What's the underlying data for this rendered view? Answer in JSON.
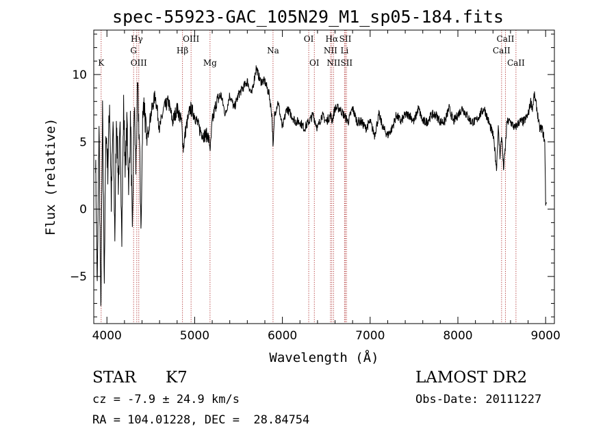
{
  "header": {
    "title": "spec-55923-GAC_105N29_M1_sp05-184.fits"
  },
  "info": {
    "class_label": "STAR",
    "subclass_label": "K7",
    "survey": "LAMOST DR2",
    "cz": "cz = -7.9 ± 24.9 km/s",
    "obs_date": "Obs-Date: 20111227",
    "coords": "RA = 104.01228, DEC =  28.84754"
  },
  "colors": {
    "spectrum": "#000000",
    "line_markers": "#b03030",
    "axes": "#000000"
  },
  "chart_data": {
    "type": "line",
    "title": "spec-55923-GAC_105N29_M1_sp05-184.fits",
    "xlabel": "Wavelength (Å)",
    "ylabel": "Flux (relative)",
    "xlim": [
      3850,
      9100
    ],
    "ylim": [
      -8.5,
      13.3
    ],
    "xticks": [
      4000,
      5000,
      6000,
      7000,
      8000,
      9000
    ],
    "yticks": [
      -5,
      0,
      5,
      10
    ],
    "grid": false,
    "series": [
      {
        "x": [
          3870,
          3890,
          3910,
          3930,
          3950,
          3970,
          3990,
          4010,
          4030,
          4050,
          4070,
          4090,
          4110,
          4130,
          4150,
          4170,
          4190,
          4210,
          4230,
          4250,
          4270,
          4290,
          4310,
          4330,
          4350,
          4370,
          4390,
          4410,
          4430,
          4450,
          4500,
          4550,
          4600,
          4650,
          4700,
          4750,
          4800,
          4850,
          4870,
          4900,
          4950,
          5000,
          5050,
          5100,
          5150,
          5180,
          5200,
          5250,
          5300,
          5350,
          5400,
          5450,
          5500,
          5550,
          5600,
          5650,
          5700,
          5750,
          5800,
          5850,
          5880,
          5895,
          5910,
          5950,
          6000,
          6050,
          6100,
          6150,
          6200,
          6250,
          6300,
          6350,
          6400,
          6450,
          6500,
          6550,
          6563,
          6600,
          6650,
          6700,
          6750,
          6800,
          6850,
          6900,
          6950,
          7000,
          7050,
          7100,
          7150,
          7200,
          7250,
          7300,
          7350,
          7400,
          7450,
          7500,
          7550,
          7600,
          7650,
          7700,
          7750,
          7800,
          7850,
          7900,
          7950,
          8000,
          8050,
          8100,
          8150,
          8200,
          8250,
          8300,
          8350,
          8400,
          8420,
          8440,
          8460,
          8480,
          8500,
          8520,
          8540,
          8560,
          8600,
          8650,
          8700,
          8750,
          8800,
          8830,
          8850,
          8870,
          8900,
          8930,
          8960,
          8990,
          9000,
          9010
        ],
        "y": [
          4.0,
          -6.0,
          6.5,
          -8.0,
          7.0,
          -5.0,
          6.0,
          3.0,
          8.0,
          0.5,
          6.5,
          -2.0,
          7.0,
          2.0,
          5.5,
          -1.5,
          7.5,
          3.0,
          6.5,
          1.5,
          7.0,
          -2.5,
          8.0,
          3.0,
          9.0,
          5.0,
          -1.5,
          8.0,
          7.5,
          5.0,
          7.0,
          8.5,
          6.0,
          7.5,
          8.0,
          6.5,
          7.5,
          6.5,
          4.5,
          6.0,
          7.5,
          7.0,
          6.0,
          5.5,
          5.5,
          4.5,
          6.5,
          8.0,
          8.5,
          7.0,
          8.5,
          7.5,
          8.5,
          9.0,
          9.5,
          8.5,
          10.5,
          9.5,
          9.5,
          8.5,
          7.0,
          4.5,
          7.0,
          8.0,
          6.0,
          7.5,
          7.0,
          6.5,
          6.5,
          6.0,
          6.5,
          7.0,
          6.0,
          7.0,
          6.5,
          7.0,
          6.5,
          7.5,
          7.5,
          7.0,
          6.5,
          7.5,
          6.5,
          6.5,
          6.0,
          6.5,
          5.5,
          7.0,
          6.0,
          5.5,
          6.0,
          7.0,
          6.5,
          7.0,
          7.0,
          6.5,
          7.5,
          6.5,
          6.5,
          7.0,
          7.0,
          6.5,
          6.5,
          7.5,
          6.5,
          7.0,
          7.5,
          7.0,
          6.5,
          6.5,
          7.0,
          7.5,
          6.5,
          5.5,
          4.5,
          3.0,
          6.0,
          4.0,
          5.5,
          3.0,
          4.5,
          6.5,
          6.5,
          6.0,
          6.5,
          6.5,
          7.0,
          8.0,
          7.5,
          8.5,
          7.5,
          6.0,
          6.0,
          5.0,
          0.5,
          0.5
        ]
      }
    ],
    "line_markers": [
      {
        "label": "K",
        "x": 3934,
        "row": 3
      },
      {
        "label": "Hγ",
        "x": 4340,
        "row": 1
      },
      {
        "label": "G",
        "x": 4304,
        "row": 2
      },
      {
        "label": "OIII",
        "x": 4363,
        "row": 3
      },
      {
        "label": "OIII",
        "x": 4959,
        "row": 1
      },
      {
        "label": "Hβ",
        "x": 4861,
        "row": 2
      },
      {
        "label": "Mg",
        "x": 5175,
        "row": 3
      },
      {
        "label": "Na",
        "x": 5893,
        "row": 2
      },
      {
        "label": "OI",
        "x": 6300,
        "row": 1
      },
      {
        "label": "OI",
        "x": 6364,
        "row": 3
      },
      {
        "label": "Hα",
        "x": 6563,
        "row": 1
      },
      {
        "label": "NII",
        "x": 6548,
        "row": 2
      },
      {
        "label": "NII",
        "x": 6583,
        "row": 3
      },
      {
        "label": "SII",
        "x": 6717,
        "row": 1
      },
      {
        "label": "Li",
        "x": 6708,
        "row": 2
      },
      {
        "label": "SII",
        "x": 6731,
        "row": 3
      },
      {
        "label": "CaII",
        "x": 8542,
        "row": 1
      },
      {
        "label": "CaII",
        "x": 8498,
        "row": 2
      },
      {
        "label": "CaII",
        "x": 8662,
        "row": 3
      }
    ]
  }
}
